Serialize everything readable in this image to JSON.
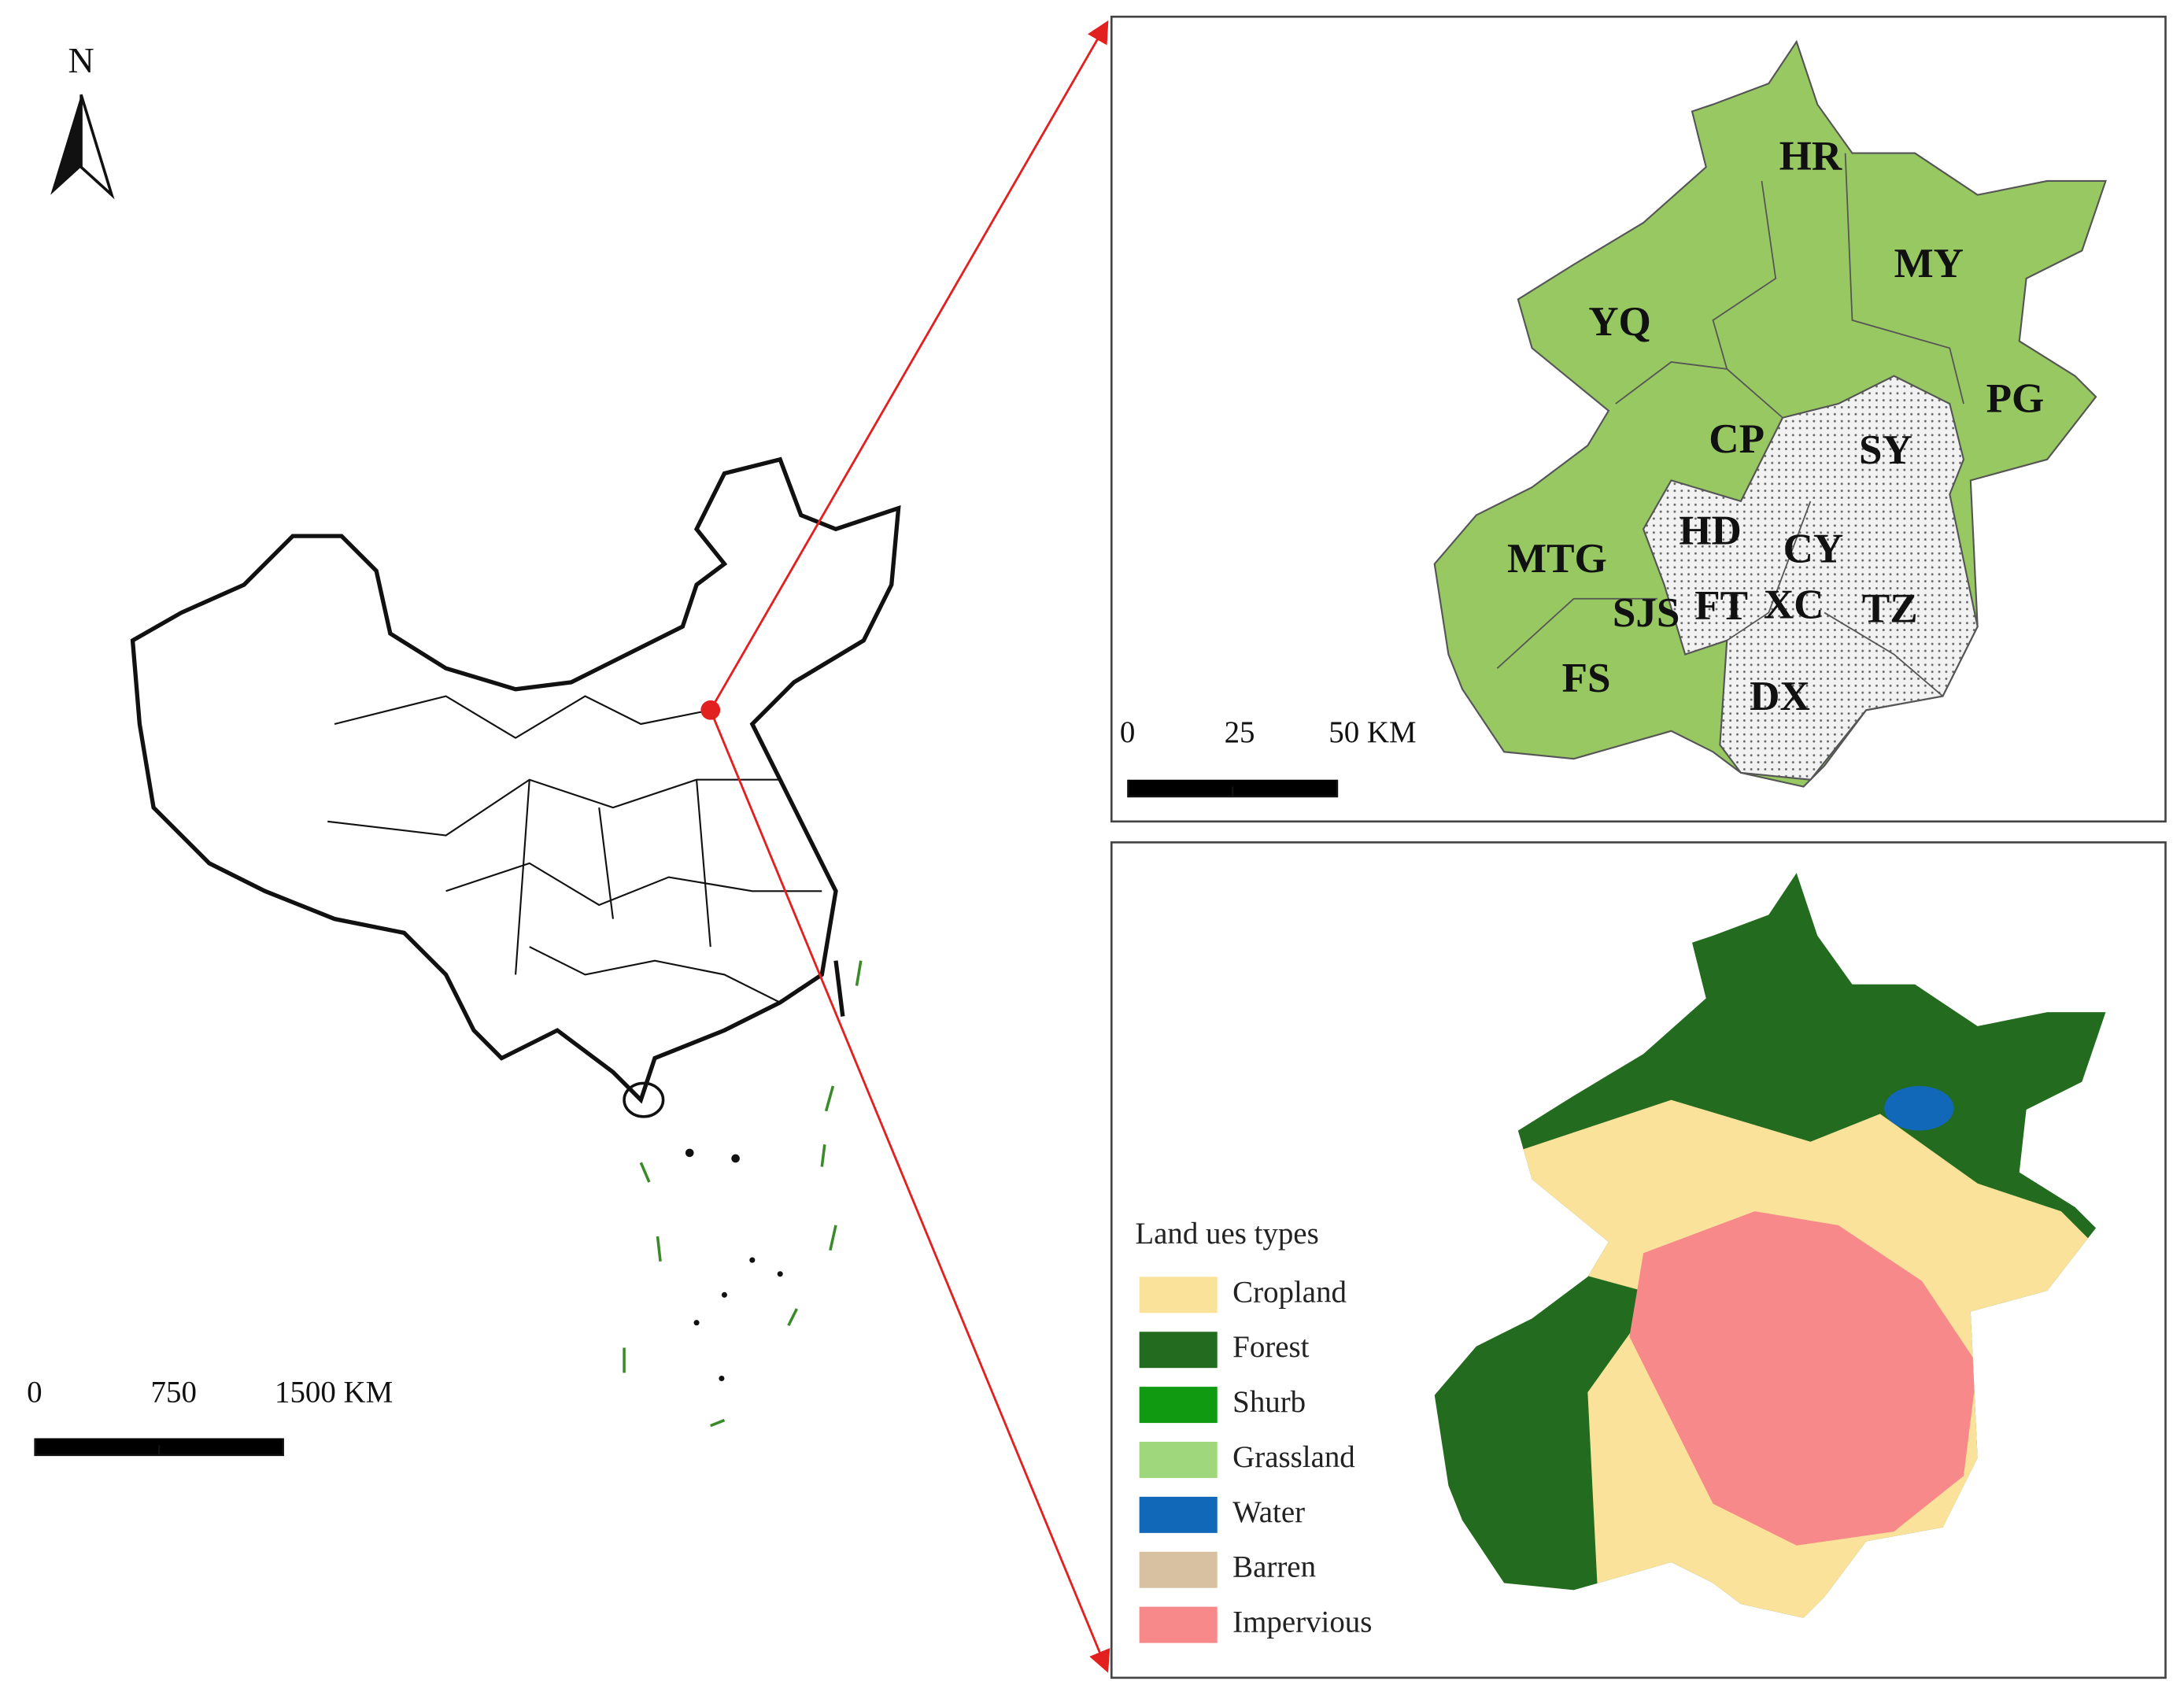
{
  "north": "N",
  "china_scale": [
    "0",
    "750",
    "1500 KM"
  ],
  "beijing_scale": [
    "0",
    "25",
    "50 KM"
  ],
  "districts": [
    "HR",
    "MY",
    "YQ",
    "PG",
    "CP",
    "SY",
    "HD",
    "CY",
    "MTG",
    "SJS",
    "FT",
    "XC",
    "TZ",
    "FS",
    "DX"
  ],
  "legend": {
    "title": "Land ues types",
    "items": [
      {
        "label": "Cropland",
        "color": "#fbe29a"
      },
      {
        "label": "Forest",
        "color": "#236b1e"
      },
      {
        "label": "Shurb",
        "color": "#0f9a12"
      },
      {
        "label": "Grassland",
        "color": "#9fd77c"
      },
      {
        "label": "Water",
        "color": "#1167b8"
      },
      {
        "label": "Barren",
        "color": "#d8c1a0"
      },
      {
        "label": "Impervious",
        "color": "#f7898a"
      }
    ]
  }
}
